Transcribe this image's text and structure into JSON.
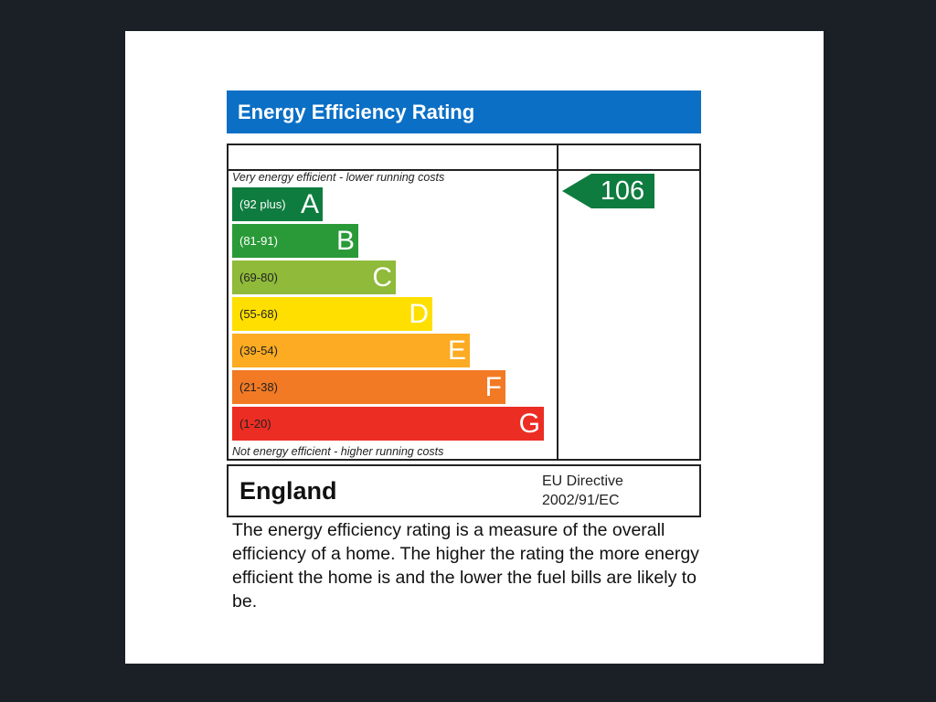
{
  "title": "Energy Efficiency Rating",
  "top_caption": "Very energy efficient - lower running costs",
  "bottom_caption": "Not energy efficient - higher running costs",
  "bands": [
    {
      "letter": "A",
      "range": "(92 plus)",
      "color": "#0f7c3f",
      "text_color": "#ffffff"
    },
    {
      "letter": "B",
      "range": "(81-91)",
      "color": "#2a9a38",
      "text_color": "#ffffff"
    },
    {
      "letter": "C",
      "range": "(69-80)",
      "color": "#8fba3a",
      "text_color": "#222222"
    },
    {
      "letter": "D",
      "range": "(55-68)",
      "color": "#ffdf00",
      "text_color": "#222222"
    },
    {
      "letter": "E",
      "range": "(39-54)",
      "color": "#fcab22",
      "text_color": "#222222"
    },
    {
      "letter": "F",
      "range": "(21-38)",
      "color": "#f27a24",
      "text_color": "#222222"
    },
    {
      "letter": "G",
      "range": "(1-20)",
      "color": "#ec2d24",
      "text_color": "#222222"
    }
  ],
  "current_rating": {
    "value": "106",
    "color": "#0f7c3f"
  },
  "region": "England",
  "directive_line1": "EU Directive",
  "directive_line2": "2002/91/EC",
  "description": "The energy efficiency rating is a measure of the overall efficiency of a home. The higher the rating the more energy efficient the home is and the lower the fuel bills are likely to be."
}
